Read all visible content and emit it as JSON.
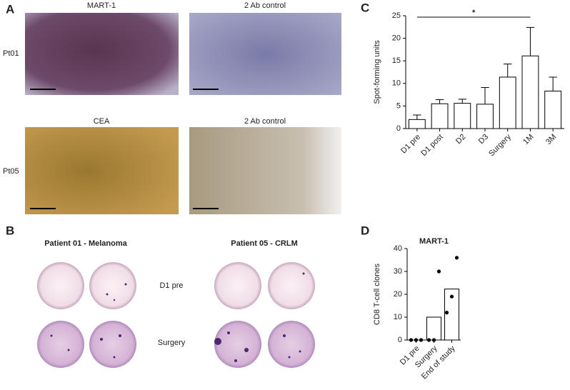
{
  "panel_labels": [
    "A",
    "B",
    "C",
    "D"
  ],
  "panel_a": {
    "columns": [
      "MART-1",
      "2 Ab control",
      "CEA",
      "2 Ab control"
    ],
    "rows": [
      "Pt01",
      "Pt05"
    ]
  },
  "panel_b": {
    "groups": [
      "Patient 01 - Melanoma",
      "Patient 05 - CRLM"
    ],
    "rows": [
      "D1 pre",
      "Surgery"
    ]
  },
  "chart_data": [
    {
      "type": "bar",
      "ylabel": "Spot-forming units",
      "categories": [
        "D1 pre",
        "D1 post",
        "D2",
        "D3",
        "Surgery",
        "1M",
        "3M"
      ],
      "values": [
        2.0,
        5.5,
        5.6,
        5.4,
        11.4,
        16.1,
        8.3
      ],
      "errors": [
        1.0,
        0.9,
        0.9,
        3.7,
        2.9,
        6.3,
        3.1
      ],
      "color": "#ffffff",
      "ylim": [
        0,
        25
      ],
      "yticks": [
        0,
        5,
        10,
        15,
        20,
        25
      ],
      "significance": {
        "label": "*",
        "from": "D1 pre",
        "to": "1M"
      }
    },
    {
      "type": "bar",
      "title": "MART-1",
      "ylabel": "CD8 T-cell clones",
      "categories": [
        "D1 pre",
        "Surgery",
        "End of study"
      ],
      "values": [
        0,
        10,
        22.3
      ],
      "points": [
        [
          0,
          0,
          0
        ],
        [
          0,
          0,
          30
        ],
        [
          12,
          19,
          36
        ]
      ],
      "color": "#ffffff",
      "ylim": [
        0,
        40
      ],
      "yticks": [
        0,
        10,
        20,
        30,
        40
      ]
    }
  ]
}
